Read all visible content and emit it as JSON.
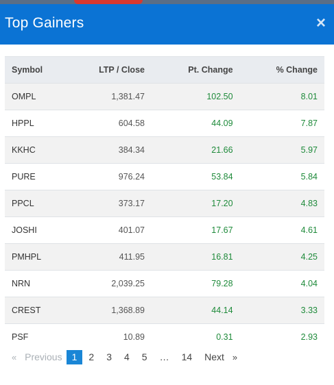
{
  "modal": {
    "title": "Top Gainers",
    "close_icon": "×"
  },
  "table": {
    "headers": {
      "symbol": "Symbol",
      "ltp": "LTP / Close",
      "pt_change": "Pt. Change",
      "pct_change": "% Change"
    },
    "rows": [
      {
        "symbol": "OMPL",
        "ltp": "1,381.47",
        "pt_change": "102.50",
        "pct_change": "8.01"
      },
      {
        "symbol": "HPPL",
        "ltp": "604.58",
        "pt_change": "44.09",
        "pct_change": "7.87"
      },
      {
        "symbol": "KKHC",
        "ltp": "384.34",
        "pt_change": "21.66",
        "pct_change": "5.97"
      },
      {
        "symbol": "PURE",
        "ltp": "976.24",
        "pt_change": "53.84",
        "pct_change": "5.84"
      },
      {
        "symbol": "PPCL",
        "ltp": "373.17",
        "pt_change": "17.20",
        "pct_change": "4.83"
      },
      {
        "symbol": "JOSHI",
        "ltp": "401.07",
        "pt_change": "17.67",
        "pct_change": "4.61"
      },
      {
        "symbol": "PMHPL",
        "ltp": "411.95",
        "pt_change": "16.81",
        "pct_change": "4.25"
      },
      {
        "symbol": "NRN",
        "ltp": "2,039.25",
        "pt_change": "79.28",
        "pct_change": "4.04"
      },
      {
        "symbol": "CREST",
        "ltp": "1,368.89",
        "pt_change": "44.14",
        "pct_change": "3.33"
      },
      {
        "symbol": "PSF",
        "ltp": "10.89",
        "pt_change": "0.31",
        "pct_change": "2.93"
      }
    ]
  },
  "pagination": {
    "prev_icon": "«",
    "prev_label": "Previous",
    "pages": [
      "1",
      "2",
      "3",
      "4",
      "5"
    ],
    "ellipsis": "…",
    "last_page": "14",
    "next_label": "Next",
    "next_icon": "»",
    "current_page": "1"
  },
  "colors": {
    "header_bg": "#0b73d4",
    "positive": "#1e8a3a",
    "active_page": "#1a86d6"
  }
}
